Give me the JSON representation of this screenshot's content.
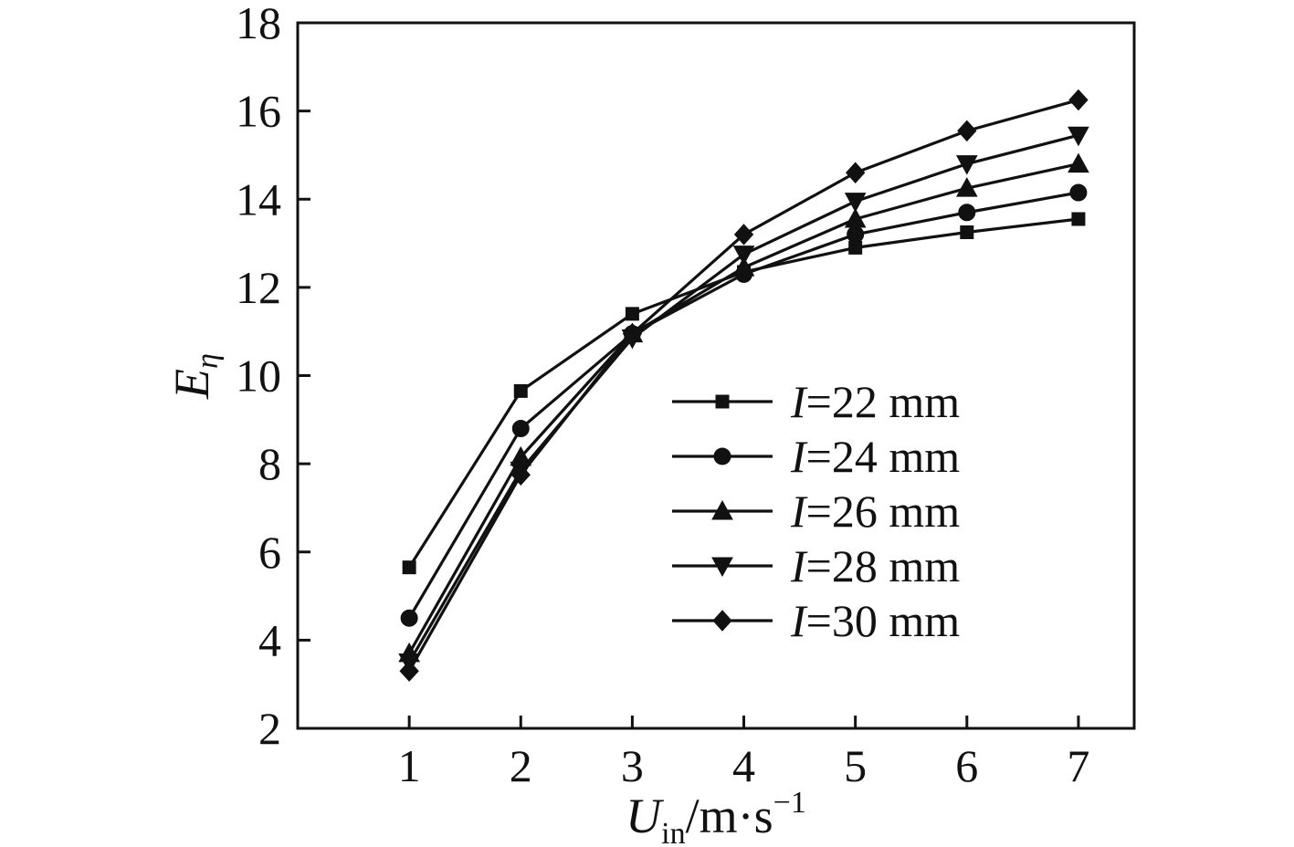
{
  "chart_data": {
    "type": "line",
    "xlabel": {
      "main": "U",
      "sub": "in",
      "unit": "/m·s",
      "sup": "−1"
    },
    "ylabel": {
      "main": "E",
      "sub": "η"
    },
    "xlim": [
      0,
      7.5
    ],
    "ylim": [
      2,
      18
    ],
    "x_ticks": [
      1,
      2,
      3,
      4,
      5,
      6,
      7
    ],
    "y_ticks": [
      2,
      4,
      6,
      8,
      10,
      12,
      14,
      16,
      18
    ],
    "grid": false,
    "legend_placement": "center-right",
    "x": [
      1,
      2,
      3,
      4,
      5,
      6,
      7
    ],
    "series": [
      {
        "name": "=22 mm",
        "prefix": "I",
        "marker": "square",
        "values": [
          5.65,
          9.65,
          11.4,
          12.35,
          12.9,
          13.25,
          13.55
        ]
      },
      {
        "name": "=24 mm",
        "prefix": "I",
        "marker": "circle",
        "values": [
          4.5,
          8.8,
          10.95,
          12.3,
          13.2,
          13.7,
          14.15
        ]
      },
      {
        "name": "=26 mm",
        "prefix": "I",
        "marker": "triangle-up",
        "values": [
          3.7,
          8.15,
          10.95,
          12.45,
          13.55,
          14.25,
          14.8
        ]
      },
      {
        "name": "=28 mm",
        "prefix": "I",
        "marker": "triangle-down",
        "values": [
          3.5,
          7.85,
          10.85,
          12.75,
          13.95,
          14.8,
          15.45
        ]
      },
      {
        "name": "=30 mm",
        "prefix": "I",
        "marker": "diamond",
        "values": [
          3.3,
          7.75,
          10.95,
          13.2,
          14.6,
          15.55,
          16.25
        ]
      }
    ],
    "color": "#111111"
  }
}
